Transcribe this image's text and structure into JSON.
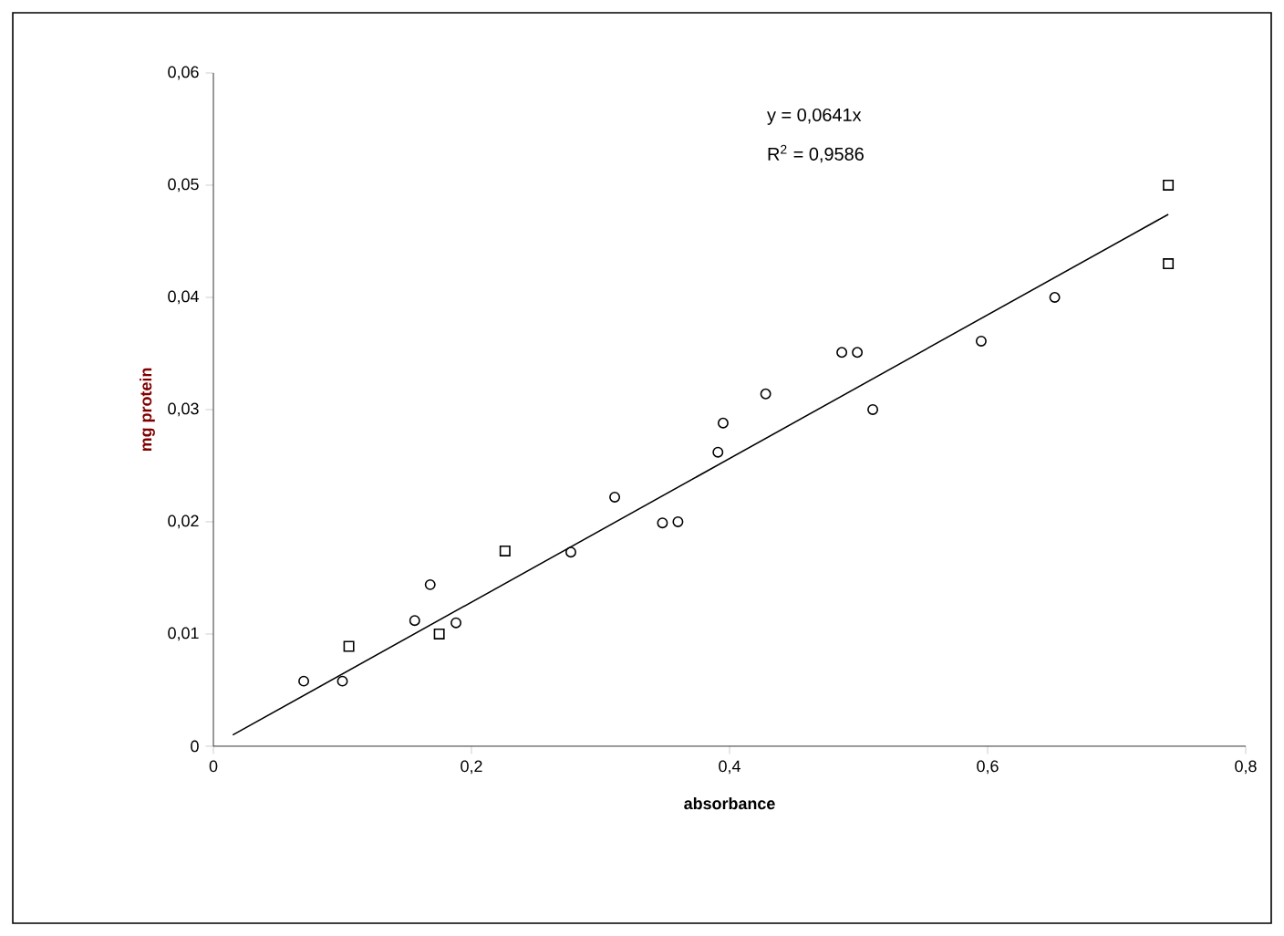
{
  "chart_data": {
    "type": "scatter",
    "xlabel": "absorbance",
    "ylabel": "mg protein",
    "annotations": [
      "y = 0,0641x",
      "R$^{2}$ = 0,9586"
    ],
    "xlim": [
      0,
      0.8
    ],
    "ylim": [
      0,
      0.06
    ],
    "xticks": [
      0,
      {
        "value": 0.2,
        "label": "0,2"
      },
      {
        "value": 0.4,
        "label": "0,4"
      },
      {
        "value": 0.6,
        "label": "0,6"
      },
      {
        "value": 0.8,
        "label": "0,8"
      }
    ],
    "yticks": [
      0,
      {
        "value": 0.01,
        "label": "0,01"
      },
      {
        "value": 0.02,
        "label": "0,02"
      },
      {
        "value": 0.03,
        "label": "0,03"
      },
      {
        "value": 0.04,
        "label": "0,04"
      },
      {
        "value": 0.05,
        "label": "0,05"
      },
      {
        "value": 0.06,
        "label": "0,06"
      }
    ],
    "series": [
      {
        "marker": "square",
        "color": "#000000",
        "x": [
          0.105,
          0.175,
          0.226,
          0.74,
          0.74
        ],
        "values": [
          0.0089,
          0.01,
          0.0174,
          0.05,
          0.043
        ]
      },
      {
        "marker": "circle",
        "color": "#000000",
        "x": [
          0.07,
          0.1,
          0.156,
          0.168,
          0.188,
          0.277,
          0.311,
          0.348,
          0.36,
          0.391,
          0.395,
          0.428,
          0.487,
          0.499,
          0.511,
          0.595,
          0.652
        ],
        "values": [
          0.0058,
          0.0058,
          0.0112,
          0.0144,
          0.011,
          0.0173,
          0.0222,
          0.0199,
          0.02,
          0.0262,
          0.0288,
          0.0314,
          0.0351,
          0.0351,
          0.03,
          0.0361,
          0.04
        ]
      },
      {
        "type": "line",
        "marker": "none",
        "color": "#000000",
        "x": [
          0.015,
          0.74
        ],
        "values": [
          0.001,
          0.0474
        ]
      }
    ]
  }
}
